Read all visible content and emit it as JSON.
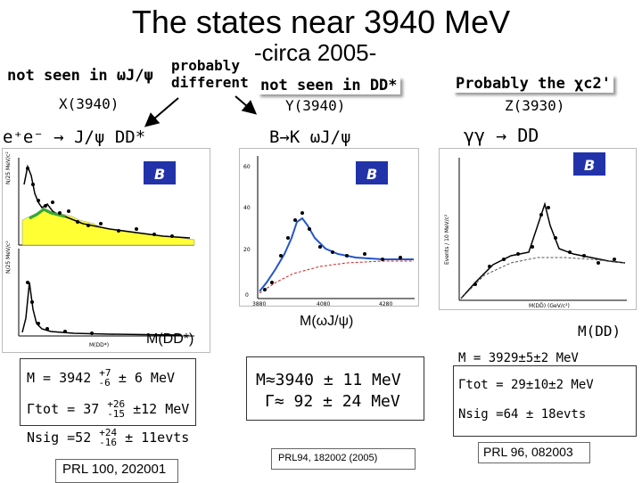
{
  "title": "The states near 3940 MeV",
  "subtitle": "-circa 2005-",
  "left": {
    "note": "not seen in ωJ/ψ",
    "state": "X(3940)",
    "reaction": "e⁺e⁻ → J/ψ DD*",
    "mass_label": "M(DD*)",
    "results": {
      "mass": "M = 3942",
      "mass_err_up": "+7",
      "mass_err_down": "-6",
      "mass_sys": "± 6 MeV",
      "width": "Γtot = 37",
      "width_err_up": "+26",
      "width_err_down": "-15",
      "width_sys": "±12 MeV",
      "nsig": "Nsig =52",
      "nsig_err_up": "+24",
      "nsig_err_down": "-16",
      "nsig_sys": "± 11evts"
    },
    "reference": "PRL 100, 202001"
  },
  "middle": {
    "different": "probably\ndifferent",
    "note": "not seen in DD*",
    "state": "Y(3940)",
    "reaction": "B→K ωJ/ψ",
    "mass_label": "M(ωJ/ψ)",
    "results": {
      "mass": "M≈3940 ± 11 MeV",
      "width": "Γ≈ 92 ± 24 MeV"
    },
    "reference": "PRL94, 182002 (2005)"
  },
  "right": {
    "note": "Probably the χc2'",
    "state": "Z(3930)",
    "reaction": "γγ → DD",
    "mass_label": "M(DD)",
    "results": {
      "mass": "M = 3929±5±2 MeV",
      "width": "Γtot = 29±10±2 MeV",
      "nsig": "Nsig =64 ± 18evts"
    },
    "reference": "PRL 96, 082003"
  },
  "plots": {
    "left_top_ylabel": "N/25 MeV/c²",
    "left_bottom_ylabel": "N/25 MeV/c²",
    "middle_yticks": [
      "60",
      "40",
      "20",
      "0"
    ],
    "middle_xticks": [
      "3880",
      "4080",
      "4280"
    ],
    "right_ylabel": "Events / 10 MeV/c²",
    "right_xlabel": "M(DD̄) (GeV/c²)"
  },
  "colors": {
    "highlight_shadow": "#9a9a9a",
    "hist_fill": "#ffff33",
    "hist_green": "#33aa33",
    "fit_blue": "#2255cc",
    "fit_red": "#cc2222"
  }
}
